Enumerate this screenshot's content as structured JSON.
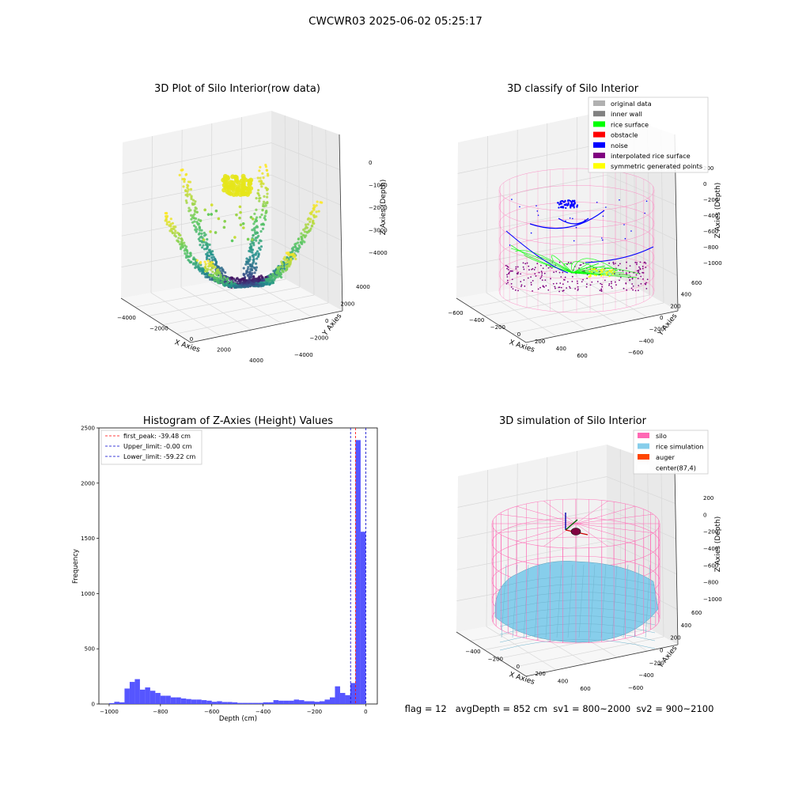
{
  "figure": {
    "suptitle": "CWCWR03 2025-06-02 05:25:17",
    "footer_text": "flag = 12   avgDepth = 852 cm  sv1 = 800~2000  sv2 = 900~2100"
  },
  "colors": {
    "pane": "#f2f2f2",
    "grid": "#d8d8d8",
    "hist_bar": "#4d4dff",
    "first_peak": "#ff0000",
    "limits": "#0000cc",
    "silo_pink": "#ff69b4",
    "rice_blue": "#87ceeb",
    "auger": "#ff4500"
  },
  "chart_data": [
    {
      "type": "scatter",
      "subtype": "3d",
      "title": "3D Plot of Silo Interior(row data)",
      "xlabel": "X Axies",
      "ylabel": "Y Axies",
      "zlabel": "Z Axies (Depth)",
      "xticks": [
        "−4000",
        "−2000",
        "0",
        "2000",
        "4000"
      ],
      "yticks": [
        "−4000",
        "−2000",
        "0",
        "2000",
        "4000"
      ],
      "zticks": [
        "0",
        "−1000",
        "−2000",
        "−3000",
        "−4000"
      ],
      "xlim": [
        -4500,
        4500
      ],
      "ylim": [
        -4500,
        4500
      ],
      "zlim": [
        -4600,
        300
      ],
      "colormap": "viridis (by depth)",
      "series": []
    },
    {
      "type": "scatter",
      "subtype": "3d",
      "title": "3D classify of Silo Interior",
      "xlabel": "X Axies",
      "ylabel": "Y Axies",
      "zlabel": "Z Axies (Depth)",
      "xticks": [
        "−600",
        "−400",
        "−200",
        "0",
        "200",
        "400",
        "600"
      ],
      "yticks": [
        "−600",
        "−400",
        "−200",
        "0",
        "200",
        "400",
        "600"
      ],
      "zticks": [
        "200",
        "0",
        "−200",
        "−400",
        "−600",
        "−800",
        "−1000"
      ],
      "xlim": [
        -650,
        650
      ],
      "ylim": [
        -650,
        650
      ],
      "zlim": [
        -1050,
        250
      ],
      "legend": {
        "position": "upper-right",
        "entries": [
          {
            "label": "original data",
            "color": "#b0b0b0"
          },
          {
            "label": "inner wall",
            "color": "#808080"
          },
          {
            "label": "rice surface",
            "color": "#00ff00"
          },
          {
            "label": "obstacle",
            "color": "#ff0000"
          },
          {
            "label": "noise",
            "color": "#0000ff"
          },
          {
            "label": "interpolated rice surface",
            "color": "#800080"
          },
          {
            "label": "symmetric generated points",
            "color": "#ffff00"
          }
        ]
      }
    },
    {
      "type": "bar",
      "subtype": "histogram",
      "title": "Histogram of Z-Axies (Height) Values",
      "xlabel": "Depth (cm)",
      "ylabel": "Frequency",
      "xlim": [
        -1040,
        45
      ],
      "ylim": [
        0,
        2500
      ],
      "xticks": [
        -1000,
        -800,
        -600,
        -400,
        -200,
        0
      ],
      "xtick_labels": [
        "−1000",
        "−800",
        "−600",
        "−400",
        "−200",
        "0"
      ],
      "yticks": [
        0,
        500,
        1000,
        1500,
        2000,
        2500
      ],
      "bin_width": 20,
      "bins_start": [
        -1000,
        -980,
        -960,
        -940,
        -920,
        -900,
        -880,
        -860,
        -840,
        -820,
        -800,
        -780,
        -760,
        -740,
        -720,
        -700,
        -680,
        -660,
        -640,
        -620,
        -600,
        -580,
        -560,
        -540,
        -520,
        -500,
        -480,
        -460,
        -440,
        -420,
        -400,
        -380,
        -360,
        -340,
        -320,
        -300,
        -280,
        -260,
        -240,
        -220,
        -200,
        -180,
        -160,
        -140,
        -120,
        -100,
        -80,
        -60,
        -40,
        -20
      ],
      "values": [
        8,
        20,
        15,
        140,
        200,
        225,
        130,
        150,
        120,
        100,
        75,
        75,
        60,
        60,
        50,
        45,
        40,
        40,
        35,
        30,
        20,
        25,
        18,
        18,
        15,
        10,
        10,
        10,
        10,
        10,
        15,
        15,
        35,
        30,
        30,
        30,
        40,
        35,
        25,
        25,
        20,
        25,
        40,
        60,
        160,
        100,
        80,
        190,
        2390,
        1560
      ],
      "reference_lines": [
        {
          "name": "first_peak: -39.48 cm",
          "x": -39.48,
          "color": "#ff0000"
        },
        {
          "name": "Upper_limit: -0.00 cm",
          "x": -0.0,
          "color": "#0000cc"
        },
        {
          "name": "Lower_limit: -59.22 cm",
          "x": -59.22,
          "color": "#0000cc"
        }
      ],
      "legend": {
        "position": "upper-left"
      }
    },
    {
      "type": "scatter",
      "subtype": "3d-surface",
      "title": "3D simulation of Silo Interior",
      "xlabel": "X Axies",
      "ylabel": "Y Axies",
      "zlabel": "Z Axies (Depth)",
      "xticks": [
        "−400",
        "−200",
        "0",
        "200",
        "400",
        "600"
      ],
      "yticks": [
        "−600",
        "−400",
        "−200",
        "0",
        "200",
        "400",
        "600"
      ],
      "zticks": [
        "200",
        "0",
        "−200",
        "−400",
        "−600",
        "−800",
        "−1000"
      ],
      "xlim": [
        -600,
        650
      ],
      "ylim": [
        -650,
        650
      ],
      "zlim": [
        -1050,
        250
      ],
      "legend": {
        "position": "upper-right",
        "entries": [
          {
            "label": "silo",
            "color": "#ff69b4"
          },
          {
            "label": "rice simulation",
            "color": "#87ceeb"
          },
          {
            "label": "auger",
            "color": "#ff4500"
          },
          {
            "label": "center(87,4)",
            "color": "#ffffff"
          }
        ]
      }
    }
  ]
}
